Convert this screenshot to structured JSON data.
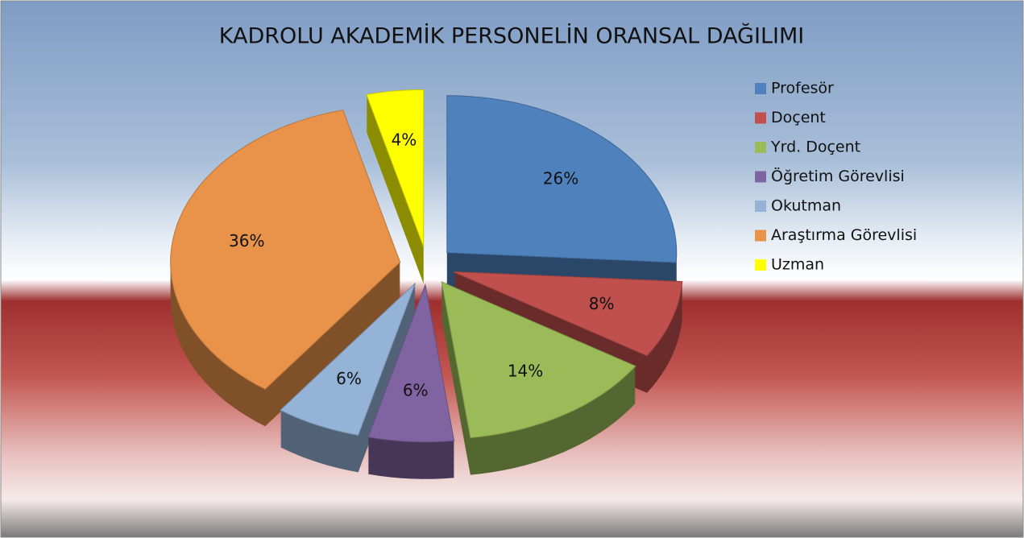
{
  "chart_data": {
    "type": "pie",
    "title": "KADROLU AKADEMİK PERSONELİN ORANSAL DAĞILIMI",
    "categories": [
      "Profesör",
      "Doçent",
      "Yrd. Doçent",
      "Öğretim Görevlisi",
      "Okutman",
      "Araştırma Görevlisi",
      "Uzman"
    ],
    "values": [
      26,
      8,
      14,
      6,
      6,
      36,
      4
    ],
    "value_labels": [
      "26%",
      "8%",
      "14%",
      "6%",
      "6%",
      "36%",
      "4%"
    ],
    "colors": [
      "#4f81bd",
      "#c0504d",
      "#9bbb59",
      "#8064a2",
      "#95b3d7",
      "#e8924a",
      "#ffff00"
    ],
    "legend": "right"
  }
}
